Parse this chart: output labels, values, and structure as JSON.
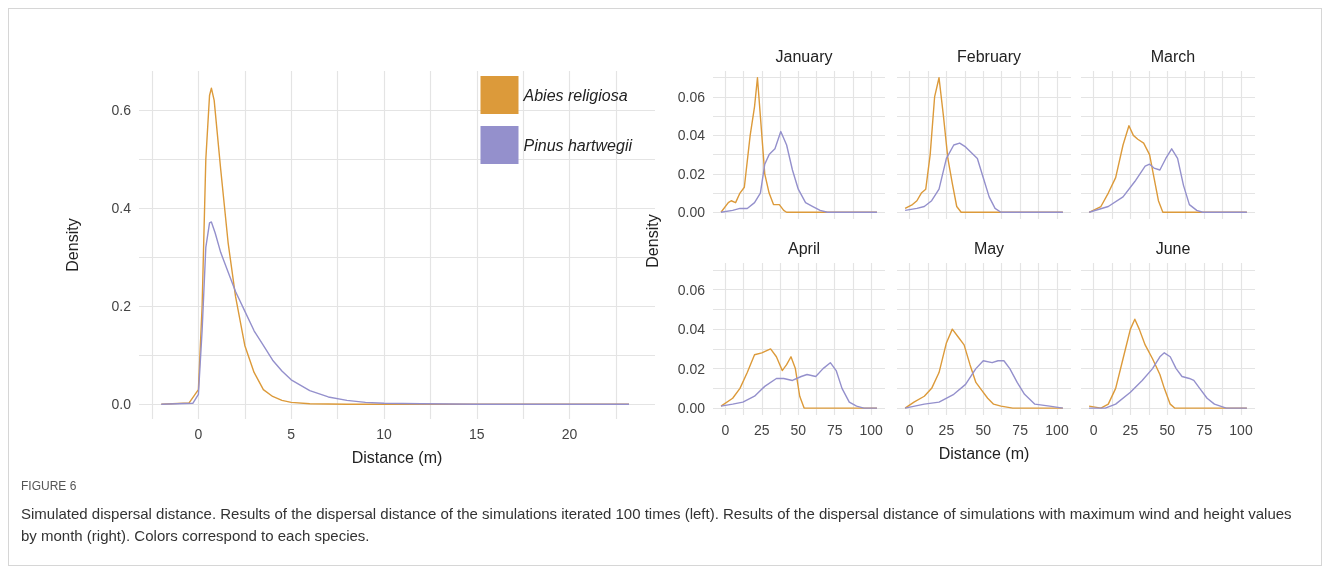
{
  "chart_data": [
    {
      "type": "line",
      "xlabel": "Distance (m)",
      "ylabel": "Density",
      "xlim": [
        -3.2,
        24.6
      ],
      "ylim": [
        -0.03,
        0.68
      ],
      "xticks": [
        {
          "value": -2.5,
          "label": null
        },
        0,
        {
          "value": 2.5,
          "label": null
        },
        5,
        {
          "value": 7.5,
          "label": null
        },
        10,
        {
          "value": 12.5,
          "label": null
        },
        15,
        {
          "value": 17.5,
          "label": null
        },
        20,
        {
          "value": 22.5,
          "label": null
        }
      ],
      "yticks": [
        {
          "value": 0,
          "label": "0.0"
        },
        {
          "value": 0.1,
          "label": null
        },
        0.2,
        {
          "value": 0.3,
          "label": null
        },
        0.4,
        {
          "value": 0.5,
          "label": null
        },
        0.6
      ],
      "grid": true,
      "legend": "top right",
      "series": [
        {
          "name": "Abies religiosa",
          "color": "#dc9a3a",
          "x": [
            -2,
            -0.5,
            0,
            0.2,
            0.4,
            0.6,
            0.7,
            0.85,
            1.2,
            1.6,
            2,
            2.5,
            3,
            3.5,
            4,
            4.5,
            5,
            6,
            8,
            23.2
          ],
          "values": [
            0,
            0.003,
            0.03,
            0.2,
            0.5,
            0.63,
            0.645,
            0.62,
            0.48,
            0.33,
            0.22,
            0.12,
            0.065,
            0.03,
            0.016,
            0.008,
            0.004,
            0.001,
            0,
            0
          ]
        },
        {
          "name": "Pinus hartwegii",
          "color": "#9490cc",
          "x": [
            -2,
            -0.3,
            0,
            0.2,
            0.4,
            0.6,
            0.7,
            0.9,
            1.2,
            1.6,
            2,
            2.5,
            3,
            3.5,
            4,
            4.5,
            5,
            6,
            7,
            8,
            9,
            10,
            12,
            15,
            23.2
          ],
          "values": [
            0,
            0.002,
            0.02,
            0.15,
            0.32,
            0.37,
            0.372,
            0.35,
            0.31,
            0.27,
            0.23,
            0.19,
            0.15,
            0.12,
            0.09,
            0.068,
            0.05,
            0.028,
            0.015,
            0.008,
            0.004,
            0.002,
            0.001,
            0,
            0
          ]
        }
      ],
      "annotations": [
        "FIGURE 6",
        "Simulated dispersal distance. Results of the dispersal distance of the simulations iterated 100 times (left). Results of the dispersal distance of simulations with maximum wind and height values by month (right). Colors correspond to each species."
      ]
    },
    {
      "type": "line",
      "title": "January",
      "ylabel": "Density",
      "xlim": [
        -8.5,
        109.5
      ],
      "ylim": [
        -0.0035,
        0.0735
      ],
      "tick_labels": "y",
      "grid": true,
      "xticks": [
        {
          "value": 0,
          "label": null
        },
        {
          "value": 12.5,
          "label": null
        },
        {
          "value": 25,
          "label": null
        },
        {
          "value": 37.5,
          "label": null
        },
        {
          "value": 50,
          "label": null
        },
        {
          "value": 62.5,
          "label": null
        },
        {
          "value": 75,
          "label": null
        },
        {
          "value": 87.5,
          "label": null
        },
        {
          "value": 100,
          "label": null
        }
      ],
      "yticks": [
        {
          "value": 0,
          "label": "0.00"
        },
        {
          "value": 0.01,
          "label": null
        },
        {
          "value": 0.02,
          "label": "0.02"
        },
        {
          "value": 0.03,
          "label": null
        },
        {
          "value": 0.04,
          "label": "0.04"
        },
        {
          "value": 0.05,
          "label": null
        },
        {
          "value": 0.06,
          "label": "0.06"
        },
        {
          "value": 0.07,
          "label": null
        }
      ],
      "series": [
        {
          "color": "#dc9a3a",
          "x": [
            -3,
            2,
            4,
            7,
            10,
            13,
            17,
            20,
            22,
            24,
            27,
            30,
            33,
            37,
            40,
            42,
            104
          ],
          "values": [
            0,
            0.005,
            0.006,
            0.005,
            0.01,
            0.013,
            0.04,
            0.055,
            0.07,
            0.05,
            0.02,
            0.01,
            0.004,
            0.004,
            0.001,
            0,
            0
          ]
        },
        {
          "color": "#9490cc",
          "x": [
            -3,
            5,
            10,
            15,
            20,
            24,
            27,
            30,
            34,
            38,
            42,
            46,
            50,
            55,
            60,
            65,
            70,
            104
          ],
          "values": [
            0,
            0.001,
            0.002,
            0.002,
            0.005,
            0.01,
            0.025,
            0.03,
            0.033,
            0.042,
            0.035,
            0.022,
            0.012,
            0.005,
            0.003,
            0.001,
            0,
            0
          ]
        }
      ]
    },
    {
      "type": "line",
      "title": "February",
      "xlim": [
        -8.5,
        109.5
      ],
      "ylim": [
        -0.0035,
        0.0735
      ],
      "tick_labels": false,
      "grid": true,
      "xticks": [
        {
          "value": 0,
          "label": null
        },
        {
          "value": 12.5,
          "label": null
        },
        {
          "value": 25,
          "label": null
        },
        {
          "value": 37.5,
          "label": null
        },
        {
          "value": 50,
          "label": null
        },
        {
          "value": 62.5,
          "label": null
        },
        {
          "value": 75,
          "label": null
        },
        {
          "value": 87.5,
          "label": null
        },
        {
          "value": 100,
          "label": null
        }
      ],
      "yticks": [
        {
          "value": 0,
          "label": null
        },
        {
          "value": 0.01,
          "label": null
        },
        {
          "value": 0.02,
          "label": null
        },
        {
          "value": 0.03,
          "label": null
        },
        {
          "value": 0.04,
          "label": null
        },
        {
          "value": 0.05,
          "label": null
        },
        {
          "value": 0.06,
          "label": null
        },
        {
          "value": 0.07,
          "label": null
        }
      ],
      "series": [
        {
          "color": "#dc9a3a",
          "x": [
            -3,
            2,
            5,
            8,
            11,
            14,
            17,
            20,
            23,
            26,
            29,
            32,
            35,
            104
          ],
          "values": [
            0.002,
            0.004,
            0.006,
            0.01,
            0.012,
            0.03,
            0.06,
            0.07,
            0.05,
            0.028,
            0.015,
            0.003,
            0,
            0
          ]
        },
        {
          "color": "#9490cc",
          "x": [
            -3,
            5,
            10,
            15,
            20,
            25,
            30,
            34,
            38,
            42,
            46,
            50,
            54,
            58,
            62,
            104
          ],
          "values": [
            0.001,
            0.002,
            0.003,
            0.006,
            0.012,
            0.028,
            0.035,
            0.036,
            0.034,
            0.031,
            0.028,
            0.018,
            0.008,
            0.002,
            0,
            0
          ]
        }
      ]
    },
    {
      "type": "line",
      "title": "March",
      "xlim": [
        -8.5,
        109.5
      ],
      "ylim": [
        -0.0035,
        0.0735
      ],
      "tick_labels": false,
      "grid": true,
      "xticks": [
        {
          "value": 0,
          "label": null
        },
        {
          "value": 12.5,
          "label": null
        },
        {
          "value": 25,
          "label": null
        },
        {
          "value": 37.5,
          "label": null
        },
        {
          "value": 50,
          "label": null
        },
        {
          "value": 62.5,
          "label": null
        },
        {
          "value": 75,
          "label": null
        },
        {
          "value": 87.5,
          "label": null
        },
        {
          "value": 100,
          "label": null
        }
      ],
      "yticks": [
        {
          "value": 0,
          "label": null
        },
        {
          "value": 0.01,
          "label": null
        },
        {
          "value": 0.02,
          "label": null
        },
        {
          "value": 0.03,
          "label": null
        },
        {
          "value": 0.04,
          "label": null
        },
        {
          "value": 0.05,
          "label": null
        },
        {
          "value": 0.06,
          "label": null
        },
        {
          "value": 0.07,
          "label": null
        }
      ],
      "series": [
        {
          "color": "#dc9a3a",
          "x": [
            -3,
            5,
            10,
            15,
            20,
            24,
            27,
            30,
            34,
            38,
            41,
            44,
            47,
            104
          ],
          "values": [
            0,
            0.003,
            0.01,
            0.018,
            0.035,
            0.045,
            0.04,
            0.038,
            0.036,
            0.03,
            0.018,
            0.006,
            0,
            0
          ]
        },
        {
          "color": "#9490cc",
          "x": [
            -3,
            10,
            20,
            28,
            35,
            38,
            41,
            45,
            49,
            53,
            57,
            61,
            65,
            70,
            74,
            104
          ],
          "values": [
            0,
            0.003,
            0.008,
            0.016,
            0.024,
            0.025,
            0.023,
            0.022,
            0.028,
            0.033,
            0.028,
            0.014,
            0.004,
            0.001,
            0,
            0
          ]
        }
      ]
    },
    {
      "type": "line",
      "title": "April",
      "xlim": [
        -8.5,
        109.5
      ],
      "ylim": [
        -0.0035,
        0.0735
      ],
      "grid": true,
      "xticks": [
        0,
        {
          "value": 12.5,
          "label": null
        },
        25,
        {
          "value": 37.5,
          "label": null
        },
        50,
        {
          "value": 62.5,
          "label": null
        },
        75,
        {
          "value": 87.5,
          "label": null
        },
        100
      ],
      "yticks": [
        {
          "value": 0,
          "label": "0.00"
        },
        {
          "value": 0.01,
          "label": null
        },
        {
          "value": 0.02,
          "label": "0.02"
        },
        {
          "value": 0.03,
          "label": null
        },
        {
          "value": 0.04,
          "label": "0.04"
        },
        {
          "value": 0.05,
          "label": null
        },
        {
          "value": 0.06,
          "label": "0.06"
        },
        {
          "value": 0.07,
          "label": null
        }
      ],
      "series": [
        {
          "color": "#dc9a3a",
          "x": [
            -3,
            5,
            10,
            15,
            20,
            25,
            31,
            35,
            39,
            42,
            45,
            48,
            51,
            54,
            104
          ],
          "values": [
            0.001,
            0.005,
            0.01,
            0.018,
            0.027,
            0.028,
            0.03,
            0.026,
            0.019,
            0.022,
            0.026,
            0.02,
            0.006,
            0,
            0
          ]
        },
        {
          "color": "#9490cc",
          "x": [
            -3,
            5,
            12,
            20,
            27,
            35,
            40,
            46,
            52,
            56,
            62,
            67,
            72,
            76,
            80,
            85,
            90,
            95,
            104
          ],
          "values": [
            0.001,
            0.002,
            0.003,
            0.006,
            0.011,
            0.015,
            0.015,
            0.014,
            0.016,
            0.017,
            0.016,
            0.02,
            0.023,
            0.019,
            0.01,
            0.003,
            0.001,
            0,
            0
          ]
        }
      ]
    },
    {
      "type": "line",
      "title": "May",
      "xlabel": "Distance (m)",
      "xlim": [
        -8.5,
        109.5
      ],
      "ylim": [
        -0.0035,
        0.0735
      ],
      "tick_labels": "x",
      "grid": true,
      "xticks": [
        0,
        {
          "value": 12.5,
          "label": null
        },
        25,
        {
          "value": 37.5,
          "label": null
        },
        50,
        {
          "value": 62.5,
          "label": null
        },
        75,
        {
          "value": 87.5,
          "label": null
        },
        100
      ],
      "yticks": [
        {
          "value": 0,
          "label": null
        },
        {
          "value": 0.01,
          "label": null
        },
        {
          "value": 0.02,
          "label": null
        },
        {
          "value": 0.03,
          "label": null
        },
        {
          "value": 0.04,
          "label": null
        },
        {
          "value": 0.05,
          "label": null
        },
        {
          "value": 0.06,
          "label": null
        },
        {
          "value": 0.07,
          "label": null
        }
      ],
      "series": [
        {
          "color": "#dc9a3a",
          "x": [
            -3,
            3,
            10,
            15,
            20,
            25,
            29,
            33,
            37,
            41,
            45,
            49,
            53,
            57,
            62,
            70,
            104
          ],
          "values": [
            0,
            0.003,
            0.006,
            0.01,
            0.018,
            0.033,
            0.04,
            0.036,
            0.032,
            0.022,
            0.013,
            0.009,
            0.005,
            0.002,
            0.001,
            0,
            0
          ]
        },
        {
          "color": "#9490cc",
          "x": [
            -3,
            10,
            20,
            30,
            38,
            45,
            50,
            56,
            60,
            64,
            68,
            73,
            78,
            85,
            95,
            104
          ],
          "values": [
            0,
            0.002,
            0.003,
            0.007,
            0.012,
            0.02,
            0.024,
            0.023,
            0.024,
            0.024,
            0.02,
            0.013,
            0.007,
            0.002,
            0.001,
            0
          ]
        }
      ]
    },
    {
      "type": "line",
      "title": "June",
      "xlim": [
        -8.5,
        109.5
      ],
      "ylim": [
        -0.0035,
        0.0735
      ],
      "tick_labels": "x",
      "grid": true,
      "xticks": [
        0,
        {
          "value": 12.5,
          "label": null
        },
        25,
        {
          "value": 37.5,
          "label": null
        },
        50,
        {
          "value": 62.5,
          "label": null
        },
        75,
        {
          "value": 87.5,
          "label": null
        },
        100
      ],
      "yticks": [
        {
          "value": 0,
          "label": null
        },
        {
          "value": 0.01,
          "label": null
        },
        {
          "value": 0.02,
          "label": null
        },
        {
          "value": 0.03,
          "label": null
        },
        {
          "value": 0.04,
          "label": null
        },
        {
          "value": 0.05,
          "label": null
        },
        {
          "value": 0.06,
          "label": null
        },
        {
          "value": 0.07,
          "label": null
        }
      ],
      "series": [
        {
          "color": "#dc9a3a",
          "x": [
            -3,
            5,
            10,
            15,
            20,
            25,
            28,
            31,
            35,
            40,
            45,
            48,
            52,
            55,
            104
          ],
          "values": [
            0.001,
            0,
            0.002,
            0.01,
            0.025,
            0.04,
            0.045,
            0.04,
            0.032,
            0.025,
            0.017,
            0.01,
            0.002,
            0,
            0
          ]
        },
        {
          "color": "#9490cc",
          "x": [
            -3,
            8,
            15,
            25,
            33,
            40,
            45,
            48,
            52,
            56,
            60,
            65,
            68,
            72,
            77,
            82,
            90,
            104
          ],
          "values": [
            0,
            0,
            0.002,
            0.008,
            0.014,
            0.02,
            0.026,
            0.028,
            0.026,
            0.02,
            0.016,
            0.015,
            0.014,
            0.01,
            0.005,
            0.002,
            0,
            0
          ]
        }
      ]
    }
  ]
}
